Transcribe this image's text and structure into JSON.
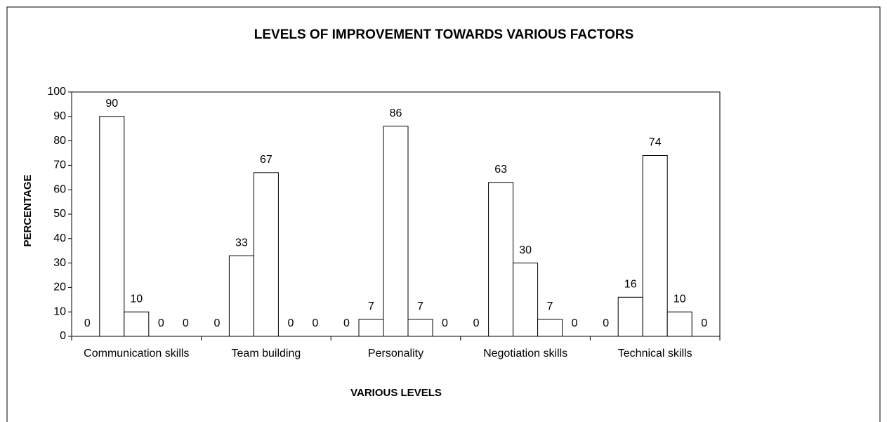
{
  "chart_data": {
    "type": "bar",
    "title": "LEVELS OF IMPROVEMENT TOWARDS VARIOUS FACTORS",
    "x_label": "VARIOUS LEVELS",
    "y_label": "PERCENTAGE",
    "categories": [
      "Communication skills",
      "Team building",
      "Personality",
      "Negotiation skills",
      "Technical skills"
    ],
    "series": [
      {
        "color": "#ffffff",
        "values": [
          0,
          0,
          0,
          0,
          0
        ]
      },
      {
        "color": "#ffffff",
        "values": [
          90,
          33,
          7,
          63,
          16
        ]
      },
      {
        "color": "#ffffff",
        "values": [
          10,
          67,
          86,
          30,
          74
        ]
      },
      {
        "color": "#ffffff",
        "values": [
          0,
          0,
          7,
          7,
          10
        ]
      },
      {
        "color": "#ffffff",
        "values": [
          0,
          0,
          0,
          0,
          0
        ]
      }
    ],
    "ylim": [
      0,
      100
    ],
    "yticks": [
      0,
      10,
      20,
      30,
      40,
      50,
      60,
      70,
      80,
      90,
      100
    ],
    "grid": false
  }
}
